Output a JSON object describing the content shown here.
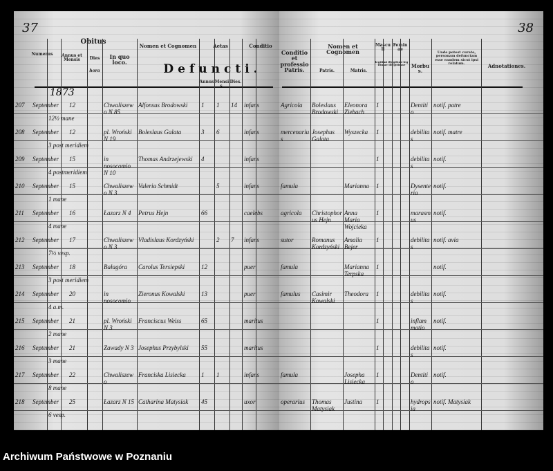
{
  "left_page": {
    "page_number": "37",
    "headers": {
      "numerus": "Numerus",
      "obitus": "Obitus",
      "annus_mensis": "Annus et Mensis",
      "dies": "Dies",
      "hora": "hora",
      "in_quo_loco": "In quo loco.",
      "nomen": "Nomen et Cognomen",
      "aetas": "Aetas",
      "conditio": "Conditio",
      "defuncti": "Defuncti.",
      "annus": "Annus.",
      "mensis": "Mensis.",
      "dies_age": "Dies."
    },
    "year": "1873",
    "rows": [
      {
        "num": "207",
        "month": "September",
        "day": "12",
        "hour": "12½ mane",
        "place": "Chwaliszewo N 85",
        "name": "Alfonsus Brodowski",
        "years": "1",
        "months": "1",
        "days": "14",
        "condition": "infans"
      },
      {
        "num": "208",
        "month": "September",
        "day": "12",
        "hour": "3 post meridiem",
        "place": "pl. Wroński N 19",
        "name": "Boleslaus Galata",
        "years": "3",
        "months": "6",
        "days": "",
        "condition": "infans"
      },
      {
        "num": "209",
        "month": "September",
        "day": "15",
        "hour": "4 postmeridiem",
        "place": "in nosocomio N 10",
        "name": "Thomas Andrzejewski",
        "years": "4",
        "months": "",
        "days": "",
        "condition": "infans"
      },
      {
        "num": "210",
        "month": "September",
        "day": "15",
        "hour": "1 mane",
        "place": "Chwaliszewo N 3",
        "name": "Valeria Schmidt",
        "years": "",
        "months": "5",
        "days": "",
        "condition": "infans"
      },
      {
        "num": "211",
        "month": "September",
        "day": "16",
        "hour": "4 mane",
        "place": "Łazarz N 4",
        "name": "Petrus Hejn",
        "years": "66",
        "months": "",
        "days": "",
        "condition": "caelebs"
      },
      {
        "num": "212",
        "month": "September",
        "day": "17",
        "hour": "7½ vesp.",
        "place": "Chwaliszewo N 3",
        "name": "Vladislaus Kordzyński",
        "years": "",
        "months": "2",
        "days": "7",
        "condition": "infans"
      },
      {
        "num": "213",
        "month": "September",
        "day": "18",
        "hour": "3 post meridiem",
        "place": "Bałagóra",
        "name": "Carolus Tersiepski",
        "years": "12",
        "months": "",
        "days": "",
        "condition": "puer"
      },
      {
        "num": "214",
        "month": "September",
        "day": "20",
        "hour": "4 a.m.",
        "place": "in nosocomio",
        "name": "Zieronus Kowalski",
        "years": "13",
        "months": "",
        "days": "",
        "condition": "puer"
      },
      {
        "num": "215",
        "month": "September",
        "day": "21",
        "hour": "2 mane",
        "place": "pl. Wroński N 3",
        "name": "Franciscus Weiss",
        "years": "65",
        "months": "",
        "days": "",
        "condition": "maritus"
      },
      {
        "num": "216",
        "month": "September",
        "day": "21",
        "hour": "3 mane",
        "place": "Zawady N 3",
        "name": "Josephus Przybylski",
        "years": "55",
        "months": "",
        "days": "",
        "condition": "maritus"
      },
      {
        "num": "217",
        "month": "September",
        "day": "22",
        "hour": "8 mane",
        "place": "Chwaliszewo",
        "name": "Franciska Lisiecka",
        "years": "1",
        "months": "1",
        "days": "",
        "condition": "infans"
      },
      {
        "num": "218",
        "month": "September",
        "day": "25",
        "hour": "6 vesp.",
        "place": "Łazarz N 15",
        "name": "Catharina Matysiak",
        "years": "45",
        "months": "",
        "days": "",
        "condition": "uxor"
      }
    ]
  },
  "right_page": {
    "page_number": "38",
    "headers": {
      "conditio_patris": "Conditio et professio Patris.",
      "nomen": "Nomen et Cognomen",
      "patris": "Patris.",
      "matris": "Matris.",
      "masculi": "Masculi",
      "feminae": "Feminae",
      "legitimi": "legitimi",
      "illegitimi": "illegitimi",
      "legitimae": "legitimae",
      "illegitimae": "illegitimae",
      "morbus": "Morbus.",
      "curator": "Unde potest curato, personam defunctam esse eandem sicut ipsi relatum.",
      "adnotationes": "Adnotationes."
    },
    "rows": [
      {
        "profession": "Agricola",
        "father": "Boleslaus Brodowski",
        "mother": "Eleonora Ziebach",
        "sex_mark": "1",
        "disease": "Dentitio",
        "note": "notif. patre"
      },
      {
        "profession": "mercenarius",
        "father": "Josephus Galata",
        "mother": "Wyszecka",
        "sex_mark": "1",
        "disease": "debilitas",
        "note": "notif. matre"
      },
      {
        "profession": "",
        "father": "",
        "mother": "",
        "sex_mark": "1",
        "disease": "debilitas",
        "note": "notif."
      },
      {
        "profession": "famula",
        "father": "",
        "mother": "Marianna",
        "sex_mark": "1",
        "disease": "Dysenteria",
        "note": "notif."
      },
      {
        "profession": "agricola",
        "father": "Christophorus Hejn",
        "mother": "Anna Maria Wojcieka",
        "sex_mark": "1",
        "disease": "marasmus",
        "note": "notif."
      },
      {
        "profession": "sutor",
        "father": "Romanus Kordzyński",
        "mother": "Amalia Bejer",
        "sex_mark": "1",
        "disease": "debilitas",
        "note": "notif. avia"
      },
      {
        "profession": "famula",
        "father": "",
        "mother": "Marianna Terpska",
        "sex_mark": "1",
        "disease": "",
        "note": "notif."
      },
      {
        "profession": "famulus",
        "father": "Casimir Kowalski",
        "mother": "Theodora",
        "sex_mark": "1",
        "disease": "debilitas",
        "note": "notif."
      },
      {
        "profession": "",
        "father": "",
        "mother": "",
        "sex_mark": "1",
        "disease": "inflammatio",
        "note": "notif."
      },
      {
        "profession": "",
        "father": "",
        "mother": "",
        "sex_mark": "1",
        "disease": "debilitas",
        "note": "notif."
      },
      {
        "profession": "famula",
        "father": "",
        "mother": "Josepha Lisiecka",
        "sex_mark": "1",
        "disease": "Dentitio",
        "note": "notif."
      },
      {
        "profession": "operarius",
        "father": "Thomas Matysiak",
        "mother": "Justina",
        "sex_mark": "1",
        "disease": "hydropsia",
        "note": "notif. Matysiak"
      }
    ]
  },
  "footer": {
    "archive": "Archiwum Państwowe w Poznaniu"
  }
}
